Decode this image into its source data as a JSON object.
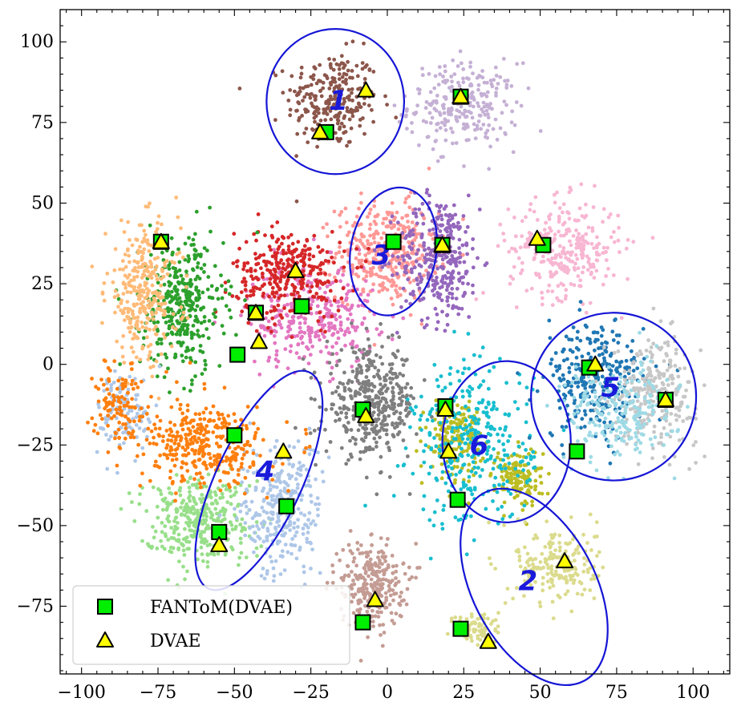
{
  "chart_data": {
    "type": "scatter",
    "title": "",
    "xlabel": "",
    "ylabel": "",
    "xlim": [
      -107,
      112
    ],
    "ylim": [
      -96,
      110
    ],
    "xticks": [
      -100,
      -75,
      -50,
      -25,
      0,
      25,
      50,
      75,
      100
    ],
    "yticks": [
      -75,
      -50,
      -25,
      0,
      25,
      50,
      75,
      100
    ],
    "xtick_labels": [
      "−100",
      "−75",
      "−50",
      "−25",
      "0",
      "25",
      "50",
      "75",
      "100"
    ],
    "ytick_labels": [
      "−75",
      "−50",
      "−25",
      "0",
      "25",
      "50",
      "75",
      "100"
    ],
    "legend_position": "bottom-left",
    "background_clusters": [
      {
        "color": "#8c564b",
        "cx": -18,
        "cy": 82,
        "sx": 10,
        "sy": 10,
        "n": 260
      },
      {
        "color": "#c5b0d5",
        "cx": 25,
        "cy": 80,
        "sx": 12,
        "sy": 9,
        "n": 260
      },
      {
        "color": "#ff9896",
        "cx": 0,
        "cy": 35,
        "sx": 11,
        "sy": 10,
        "n": 380
      },
      {
        "color": "#9467bd",
        "cx": 17,
        "cy": 33,
        "sx": 9,
        "sy": 13,
        "n": 330
      },
      {
        "color": "#f7b6d2",
        "cx": 58,
        "cy": 36,
        "sx": 12,
        "sy": 10,
        "n": 300
      },
      {
        "color": "#e377c2",
        "cx": -25,
        "cy": 15,
        "sx": 14,
        "sy": 11,
        "n": 340
      },
      {
        "color": "#d62728",
        "cx": -32,
        "cy": 28,
        "sx": 12,
        "sy": 9,
        "n": 330
      },
      {
        "color": "#2ca02c",
        "cx": -67,
        "cy": 18,
        "sx": 9,
        "sy": 14,
        "n": 360
      },
      {
        "color": "#ffbb78",
        "cx": -80,
        "cy": 22,
        "sx": 8,
        "sy": 14,
        "n": 300
      },
      {
        "color": "#7f7f7f",
        "cx": -5,
        "cy": -12,
        "sx": 10,
        "sy": 11,
        "n": 400
      },
      {
        "color": "#bcbd22",
        "cx": 22,
        "cy": -22,
        "sx": 6,
        "sy": 8,
        "n": 180
      },
      {
        "color": "#bcbd22",
        "cx": 43,
        "cy": -35,
        "sx": 5,
        "sy": 6,
        "n": 140
      },
      {
        "color": "#17becf",
        "cx": 28,
        "cy": -25,
        "sx": 13,
        "sy": 17,
        "n": 330
      },
      {
        "color": "#1f77b4",
        "cx": 68,
        "cy": -5,
        "sx": 11,
        "sy": 12,
        "n": 290
      },
      {
        "color": "#c7c7c7",
        "cx": 88,
        "cy": -8,
        "sx": 9,
        "sy": 11,
        "n": 260
      },
      {
        "color": "#9edae5",
        "cx": 76,
        "cy": -15,
        "sx": 12,
        "sy": 10,
        "n": 230
      },
      {
        "color": "#dbdb8d",
        "cx": 55,
        "cy": -62,
        "sx": 9,
        "sy": 8,
        "n": 200
      },
      {
        "color": "#dbdb8d",
        "cx": 30,
        "cy": -82,
        "sx": 5,
        "sy": 4,
        "n": 80
      },
      {
        "color": "#c49c94",
        "cx": -5,
        "cy": -68,
        "sx": 7,
        "sy": 9,
        "n": 280
      },
      {
        "color": "#98df8a",
        "cx": -62,
        "cy": -48,
        "sx": 12,
        "sy": 9,
        "n": 360
      },
      {
        "color": "#aec7e8",
        "cx": -35,
        "cy": -45,
        "sx": 9,
        "sy": 14,
        "n": 300
      },
      {
        "color": "#aec7e8",
        "cx": -85,
        "cy": -15,
        "sx": 6,
        "sy": 9,
        "n": 110
      },
      {
        "color": "#ff7f0e",
        "cx": -60,
        "cy": -25,
        "sx": 14,
        "sy": 9,
        "n": 350
      },
      {
        "color": "#ff7f0e",
        "cx": -88,
        "cy": -12,
        "sx": 5,
        "sy": 9,
        "n": 110
      }
    ],
    "series": [
      {
        "name": "FANToM(DVAE)",
        "marker": "square",
        "color": "#00ee00",
        "points": [
          [
            -20,
            72
          ],
          [
            24,
            83
          ],
          [
            2,
            38
          ],
          [
            51,
            37
          ],
          [
            18,
            37
          ],
          [
            -74,
            38
          ],
          [
            -43,
            16
          ],
          [
            -28,
            18
          ],
          [
            -49,
            3
          ],
          [
            66,
            -1
          ],
          [
            91,
            -11
          ],
          [
            -8,
            -14
          ],
          [
            19,
            -13
          ],
          [
            -50,
            -22
          ],
          [
            62,
            -27
          ],
          [
            -33,
            -44
          ],
          [
            23,
            -42
          ],
          [
            -55,
            -52
          ],
          [
            -8,
            -80
          ],
          [
            24,
            -82
          ]
        ]
      },
      {
        "name": "DVAE",
        "marker": "triangle",
        "color": "#ffff00",
        "points": [
          [
            -7,
            85
          ],
          [
            -22,
            72
          ],
          [
            24,
            83
          ],
          [
            -30,
            29
          ],
          [
            49,
            39
          ],
          [
            18,
            37
          ],
          [
            -74,
            38
          ],
          [
            -43,
            16
          ],
          [
            -42,
            7
          ],
          [
            68,
            0
          ],
          [
            91,
            -11
          ],
          [
            -7,
            -16
          ],
          [
            19,
            -14
          ],
          [
            20,
            -27
          ],
          [
            -34,
            -27
          ],
          [
            -55,
            -56
          ],
          [
            58,
            -61
          ],
          [
            -4,
            -73
          ],
          [
            33,
            -86
          ]
        ]
      }
    ],
    "ellipses": [
      {
        "cx": -17,
        "cy": 81.5,
        "rx": 22.5,
        "ry": 22.5,
        "angle_deg": 0
      },
      {
        "cx": 2,
        "cy": 35,
        "rx": 14,
        "ry": 20,
        "angle_deg": 10
      },
      {
        "cx": 74,
        "cy": -10,
        "rx": 27,
        "ry": 26,
        "angle_deg": 0
      },
      {
        "cx": 39,
        "cy": -24,
        "rx": 21,
        "ry": 25,
        "angle_deg": 0
      },
      {
        "cx": 48,
        "cy": -69,
        "rx": 20,
        "ry": 33,
        "angle_deg": -28
      },
      {
        "cx": -42,
        "cy": -36,
        "rx": 14,
        "ry": 37,
        "angle_deg": 25
      }
    ],
    "annotations": [
      {
        "text": "1",
        "x": -16,
        "y": 79
      },
      {
        "text": "2",
        "x": 46,
        "y": -70
      },
      {
        "text": "3",
        "x": -2,
        "y": 31
      },
      {
        "text": "4",
        "x": -40,
        "y": -36
      },
      {
        "text": "5",
        "x": 73,
        "y": -10
      },
      {
        "text": "6",
        "x": 30,
        "y": -28
      }
    ]
  },
  "colors": {
    "ellipse": "#1515d6",
    "label": "#1a1adb",
    "square_fill": "#00ee00",
    "triangle_fill": "#ffff00"
  }
}
